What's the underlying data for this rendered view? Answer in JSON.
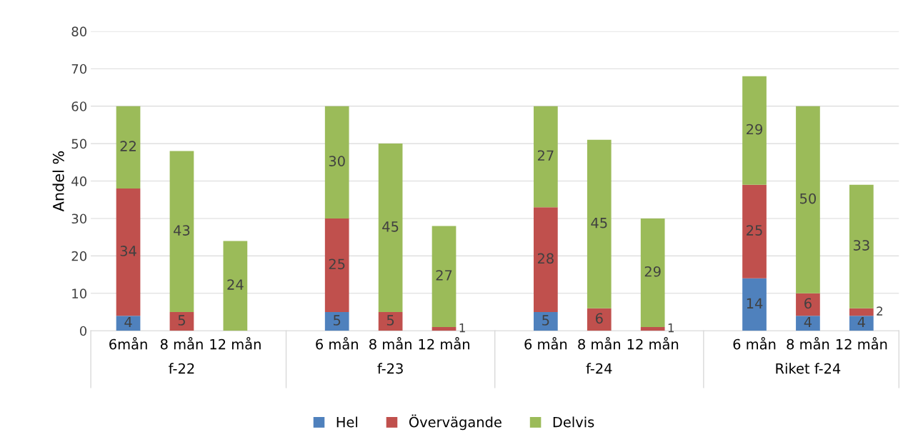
{
  "chart_data": {
    "type": "bar",
    "stacked": true,
    "ylabel": "Andel %",
    "categories": [
      "6mån",
      "8 mån",
      "12 mån",
      "6 mån",
      "8 mån",
      "12 mån",
      "6 mån",
      "8 mån",
      "12 mån",
      "6 mån",
      "8 mån",
      "12 mån"
    ],
    "annotations": [
      "f-22",
      "f-23",
      "f-24",
      "Riket f-24"
    ],
    "series": [
      {
        "name": "Hel",
        "color": "#4f81bd",
        "values": [
          4,
          0,
          0,
          5,
          0,
          0,
          5,
          0,
          0,
          14,
          4,
          4
        ],
        "value_labels": [
          "4",
          null,
          null,
          "5",
          null,
          null,
          "5",
          null,
          null,
          "14",
          "4",
          "4"
        ]
      },
      {
        "name": "Övervägande",
        "color": "#c0504d",
        "values": [
          34,
          5,
          0,
          25,
          5,
          1,
          28,
          6,
          1,
          25,
          6,
          2
        ],
        "value_labels": [
          "34",
          "5",
          null,
          "25",
          "5",
          "1",
          "28",
          "6",
          "1",
          "25",
          "6",
          "2"
        ]
      },
      {
        "name": "Delvis",
        "color": "#9bbb59",
        "values": [
          22,
          43,
          24,
          30,
          45,
          27,
          27,
          45,
          29,
          29,
          50,
          33
        ],
        "value_labels": [
          "22",
          "43",
          "24",
          "30",
          "45",
          "27",
          "27",
          "45",
          "29",
          "29",
          "50",
          "33"
        ]
      }
    ],
    "ylim": [
      0,
      80
    ],
    "yticks": [
      0,
      10,
      20,
      30,
      40,
      50,
      60,
      70,
      80
    ],
    "grid": "y",
    "legend": "bottom"
  }
}
